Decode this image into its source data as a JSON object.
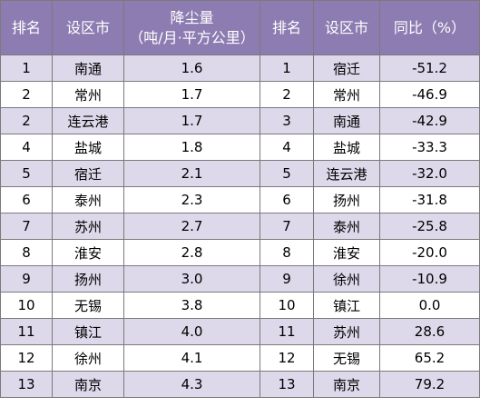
{
  "headers": {
    "rank1": "排名",
    "city1": "设区市",
    "dust_line1": "降尘量",
    "dust_line2": "（吨/月·平方公里）",
    "rank2": "排名",
    "city2": "设区市",
    "yoy": "同比（%）"
  },
  "rows": [
    {
      "rank_a": "1",
      "city_a": "南通",
      "dust": "1.6",
      "rank_b": "1",
      "city_b": "宿迁",
      "yoy": "-51.2"
    },
    {
      "rank_a": "2",
      "city_a": "常州",
      "dust": "1.7",
      "rank_b": "2",
      "city_b": "常州",
      "yoy": "-46.9"
    },
    {
      "rank_a": "2",
      "city_a": "连云港",
      "dust": "1.7",
      "rank_b": "3",
      "city_b": "南通",
      "yoy": "-42.9"
    },
    {
      "rank_a": "4",
      "city_a": "盐城",
      "dust": "1.8",
      "rank_b": "4",
      "city_b": "盐城",
      "yoy": "-33.3"
    },
    {
      "rank_a": "5",
      "city_a": "宿迁",
      "dust": "2.1",
      "rank_b": "5",
      "city_b": "连云港",
      "yoy": "-32.0"
    },
    {
      "rank_a": "6",
      "city_a": "泰州",
      "dust": "2.3",
      "rank_b": "6",
      "city_b": "扬州",
      "yoy": "-31.8"
    },
    {
      "rank_a": "7",
      "city_a": "苏州",
      "dust": "2.7",
      "rank_b": "7",
      "city_b": "泰州",
      "yoy": "-25.8"
    },
    {
      "rank_a": "8",
      "city_a": "淮安",
      "dust": "2.8",
      "rank_b": "8",
      "city_b": "淮安",
      "yoy": "-20.0"
    },
    {
      "rank_a": "9",
      "city_a": "扬州",
      "dust": "3.0",
      "rank_b": "9",
      "city_b": "徐州",
      "yoy": "-10.9"
    },
    {
      "rank_a": "10",
      "city_a": "无锡",
      "dust": "3.8",
      "rank_b": "10",
      "city_b": "镇江",
      "yoy": "0.0"
    },
    {
      "rank_a": "11",
      "city_a": "镇江",
      "dust": "4.0",
      "rank_b": "11",
      "city_b": "苏州",
      "yoy": "28.6"
    },
    {
      "rank_a": "12",
      "city_a": "徐州",
      "dust": "4.1",
      "rank_b": "12",
      "city_b": "无锡",
      "yoy": "65.2"
    },
    {
      "rank_a": "13",
      "city_a": "南京",
      "dust": "4.3",
      "rank_b": "13",
      "city_b": "南京",
      "yoy": "79.2"
    }
  ],
  "colors": {
    "header_bg": "#8c7cb1",
    "stripe_bg": "#ddd8ea",
    "border": "#7a7a7a"
  }
}
